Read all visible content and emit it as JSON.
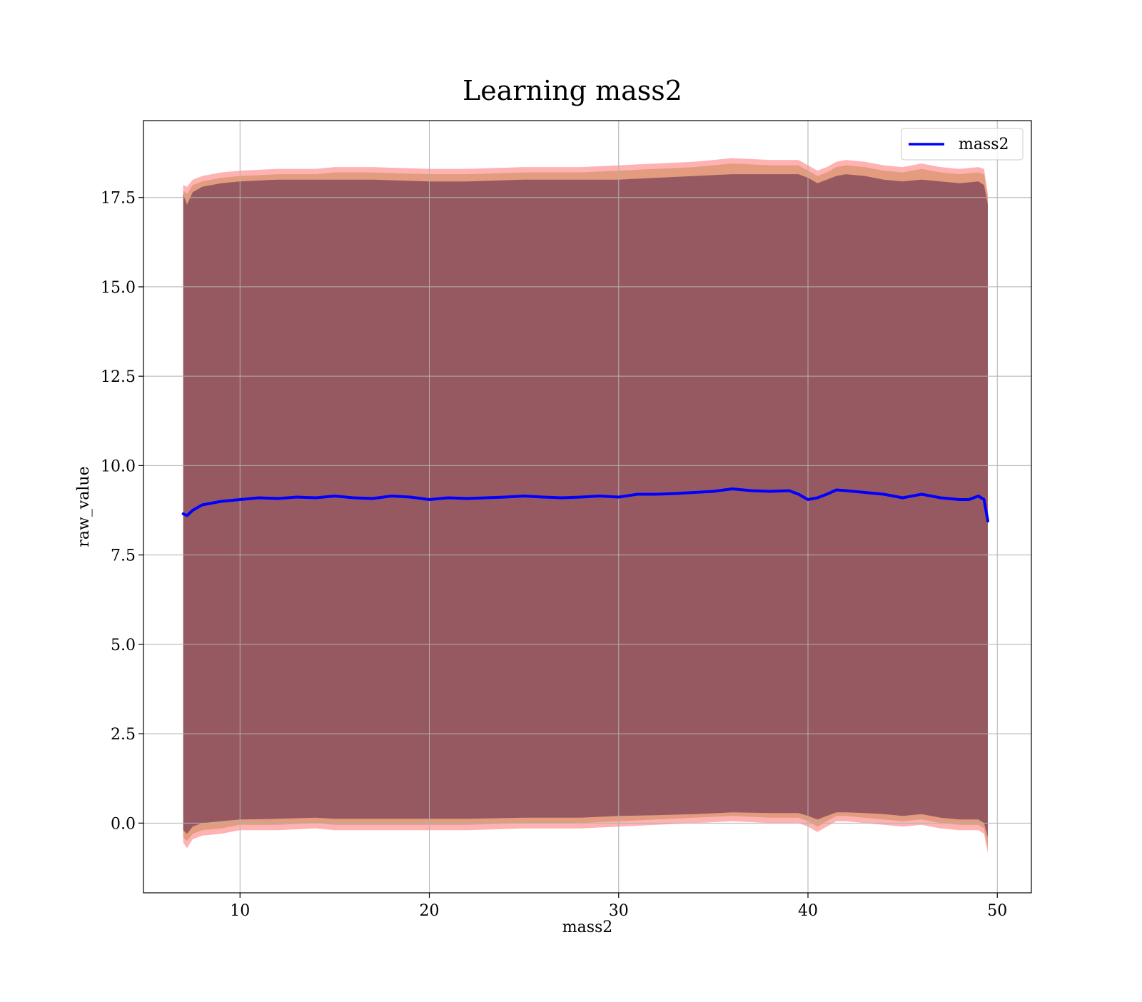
{
  "chart_data": {
    "type": "line",
    "title": "Learning mass2",
    "xlabel": "mass2",
    "ylabel": "raw_value",
    "xlim": [
      4.9,
      51.8
    ],
    "ylim": [
      -1.95,
      19.65
    ],
    "xticks": [
      10,
      20,
      30,
      40,
      50
    ],
    "yticks": [
      0.0,
      2.5,
      5.0,
      7.5,
      10.0,
      12.5,
      15.0,
      17.5
    ],
    "xtick_labels": [
      "10",
      "20",
      "30",
      "40",
      "50"
    ],
    "ytick_labels": [
      "0.0",
      "2.5",
      "5.0",
      "7.5",
      "10.0",
      "12.5",
      "15.0",
      "17.5"
    ],
    "grid": true,
    "legend": {
      "position": "upper right",
      "entries": [
        "mass2"
      ]
    },
    "series": [
      {
        "name": "mass2",
        "color": "#0000ff",
        "x": [
          7.0,
          7.2,
          7.5,
          8.0,
          8.5,
          9.0,
          10.0,
          11.0,
          12.0,
          13.0,
          14.0,
          15.0,
          16.0,
          17.0,
          18.0,
          19.0,
          20.0,
          21.0,
          22.0,
          23.0,
          24.0,
          25.0,
          26.0,
          27.0,
          28.0,
          29.0,
          30.0,
          31.0,
          32.0,
          33.0,
          34.0,
          35.0,
          36.0,
          37.0,
          38.0,
          39.0,
          39.5,
          40.0,
          40.5,
          41.0,
          41.5,
          42.0,
          43.0,
          44.0,
          45.0,
          46.0,
          47.0,
          48.0,
          48.5,
          49.0,
          49.3,
          49.5
        ],
        "values": [
          8.65,
          8.6,
          8.75,
          8.9,
          8.95,
          9.0,
          9.05,
          9.1,
          9.08,
          9.12,
          9.1,
          9.15,
          9.1,
          9.08,
          9.15,
          9.12,
          9.05,
          9.1,
          9.08,
          9.1,
          9.12,
          9.15,
          9.12,
          9.1,
          9.12,
          9.15,
          9.12,
          9.2,
          9.2,
          9.22,
          9.25,
          9.28,
          9.35,
          9.3,
          9.28,
          9.3,
          9.2,
          9.05,
          9.1,
          9.2,
          9.32,
          9.3,
          9.25,
          9.2,
          9.1,
          9.2,
          9.1,
          9.05,
          9.05,
          9.15,
          9.05,
          8.45
        ]
      }
    ],
    "bands": [
      {
        "color": "#ff0000",
        "opacity": 0.3,
        "x": [
          7.0,
          7.2,
          7.5,
          8.0,
          9.0,
          10.0,
          12.0,
          14.0,
          15.0,
          17.0,
          20.0,
          22.0,
          25.0,
          28.0,
          30.0,
          32.0,
          34.0,
          36.0,
          38.0,
          39.5,
          40.0,
          40.5,
          41.0,
          41.5,
          42.0,
          43.0,
          44.0,
          45.0,
          46.0,
          47.0,
          48.0,
          49.0,
          49.3,
          49.5
        ],
        "upper": [
          17.85,
          17.8,
          18.0,
          18.1,
          18.2,
          18.25,
          18.3,
          18.3,
          18.35,
          18.35,
          18.3,
          18.3,
          18.35,
          18.35,
          18.4,
          18.45,
          18.5,
          18.6,
          18.55,
          18.55,
          18.4,
          18.25,
          18.35,
          18.5,
          18.55,
          18.5,
          18.4,
          18.35,
          18.45,
          18.35,
          18.3,
          18.35,
          18.3,
          17.6
        ],
        "lower": [
          -0.55,
          -0.7,
          -0.45,
          -0.35,
          -0.3,
          -0.2,
          -0.2,
          -0.15,
          -0.2,
          -0.2,
          -0.2,
          -0.2,
          -0.15,
          -0.15,
          -0.1,
          -0.05,
          0.0,
          0.05,
          0.0,
          0.0,
          -0.1,
          -0.25,
          -0.1,
          0.05,
          0.05,
          0.0,
          -0.05,
          -0.1,
          -0.05,
          -0.15,
          -0.2,
          -0.2,
          -0.3,
          -0.85
        ]
      },
      {
        "color": "#cc8a55",
        "opacity": 0.55,
        "x": [
          7.0,
          7.2,
          7.5,
          8.0,
          9.0,
          10.0,
          12.0,
          14.0,
          15.0,
          17.0,
          20.0,
          22.0,
          25.0,
          28.0,
          30.0,
          32.0,
          34.0,
          36.0,
          38.0,
          39.5,
          40.0,
          40.5,
          41.0,
          41.5,
          42.0,
          43.0,
          44.0,
          45.0,
          46.0,
          47.0,
          48.0,
          49.0,
          49.3,
          49.5
        ],
        "upper": [
          17.7,
          17.6,
          17.85,
          17.95,
          18.05,
          18.1,
          18.15,
          18.15,
          18.2,
          18.2,
          18.15,
          18.15,
          18.2,
          18.2,
          18.25,
          18.3,
          18.35,
          18.45,
          18.4,
          18.4,
          18.25,
          18.1,
          18.2,
          18.35,
          18.4,
          18.35,
          18.25,
          18.2,
          18.3,
          18.2,
          18.15,
          18.2,
          18.15,
          17.5
        ],
        "lower": [
          -0.4,
          -0.5,
          -0.3,
          -0.2,
          -0.15,
          -0.05,
          -0.05,
          0.0,
          -0.05,
          -0.05,
          -0.05,
          -0.05,
          0.0,
          0.0,
          0.05,
          0.1,
          0.15,
          0.2,
          0.15,
          0.15,
          0.05,
          -0.1,
          0.05,
          0.2,
          0.2,
          0.15,
          0.1,
          0.05,
          0.1,
          0.0,
          -0.05,
          -0.05,
          -0.15,
          -0.7
        ]
      },
      {
        "color": "#8a4d5c",
        "opacity": 0.85,
        "x": [
          7.0,
          7.2,
          7.5,
          8.0,
          9.0,
          10.0,
          12.0,
          14.0,
          15.0,
          17.0,
          20.0,
          22.0,
          25.0,
          28.0,
          30.0,
          32.0,
          34.0,
          36.0,
          38.0,
          39.5,
          40.0,
          40.5,
          41.0,
          41.5,
          42.0,
          43.0,
          44.0,
          45.0,
          46.0,
          47.0,
          48.0,
          49.0,
          49.3,
          49.5
        ],
        "upper": [
          17.6,
          17.3,
          17.65,
          17.8,
          17.9,
          17.95,
          18.0,
          18.0,
          18.0,
          18.0,
          17.95,
          17.95,
          18.0,
          18.0,
          18.0,
          18.05,
          18.1,
          18.15,
          18.15,
          18.15,
          18.05,
          17.9,
          18.0,
          18.1,
          18.15,
          18.1,
          18.0,
          17.95,
          18.0,
          17.95,
          17.9,
          17.95,
          17.85,
          17.3
        ],
        "lower": [
          -0.2,
          -0.3,
          -0.1,
          0.0,
          0.05,
          0.1,
          0.12,
          0.15,
          0.12,
          0.12,
          0.12,
          0.12,
          0.15,
          0.15,
          0.2,
          0.22,
          0.25,
          0.3,
          0.28,
          0.28,
          0.2,
          0.1,
          0.2,
          0.3,
          0.3,
          0.28,
          0.25,
          0.2,
          0.25,
          0.15,
          0.1,
          0.1,
          0.0,
          -0.4
        ]
      }
    ]
  }
}
